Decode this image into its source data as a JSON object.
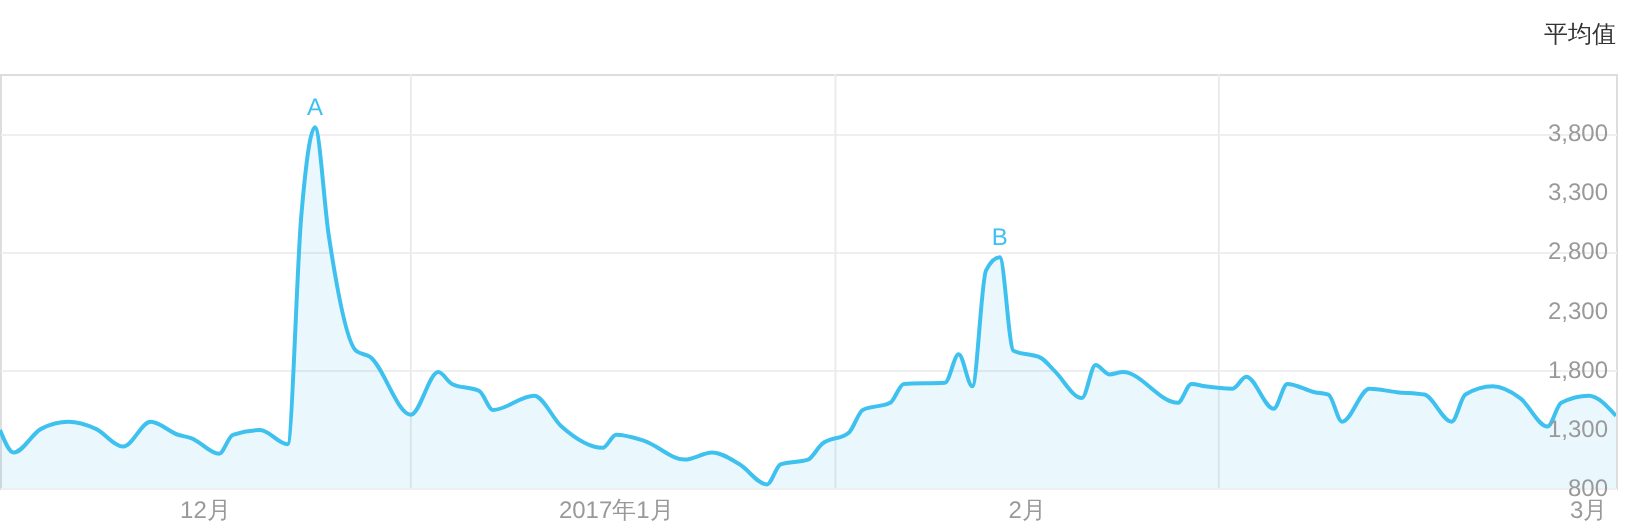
{
  "chart_data": {
    "type": "area",
    "annotations": [
      "平均值",
      {
        "text": "A",
        "x": "2016-12-25",
        "y": 3850
      },
      {
        "text": "B",
        "x": "2017-02-13",
        "y": 2750
      }
    ],
    "x": [
      "2016-12-02",
      "2016-12-03",
      "2016-12-05",
      "2016-12-07",
      "2016-12-09",
      "2016-12-11",
      "2016-12-13",
      "2016-12-15",
      "2016-12-16",
      "2016-12-18",
      "2016-12-19",
      "2016-12-21",
      "2016-12-23",
      "2016-12-24",
      "2016-12-25",
      "2016-12-26",
      "2016-12-28",
      "2016-12-29",
      "2017-01-01",
      "2017-01-03",
      "2017-01-04",
      "2017-01-06",
      "2017-01-07",
      "2017-01-10",
      "2017-01-12",
      "2017-01-15",
      "2017-01-16",
      "2017-01-18",
      "2017-01-21",
      "2017-01-23",
      "2017-01-25",
      "2017-01-27",
      "2017-01-28",
      "2017-01-30",
      "2017-01-31",
      "2017-02-02",
      "2017-02-03",
      "2017-02-05",
      "2017-02-06",
      "2017-02-09",
      "2017-02-10",
      "2017-02-11",
      "2017-02-12",
      "2017-02-13",
      "2017-02-14",
      "2017-02-16",
      "2017-02-17",
      "2017-02-19",
      "2017-02-20",
      "2017-02-21",
      "2017-02-22",
      "2017-02-26",
      "2017-02-27",
      "2017-02-28",
      "2017-03-02",
      "2017-03-03",
      "2017-03-05",
      "2017-03-06",
      "2017-03-08",
      "2017-03-09",
      "2017-03-10",
      "2017-03-12",
      "2017-03-14",
      "2017-03-16",
      "2017-03-18",
      "2017-03-19",
      "2017-03-21",
      "2017-03-23",
      "2017-03-25",
      "2017-03-26",
      "2017-03-28",
      "2017-03-30"
    ],
    "series": [
      {
        "color": "#3fc1f0",
        "values": [
          1290,
          1100,
          1300,
          1360,
          1300,
          1150,
          1360,
          1250,
          1220,
          1090,
          1250,
          1290,
          1170,
          3100,
          3850,
          2940,
          1960,
          1910,
          1420,
          1780,
          1680,
          1620,
          1460,
          1580,
          1320,
          1140,
          1250,
          1200,
          1040,
          1100,
          1000,
          830,
          1000,
          1040,
          1170,
          1270,
          1460,
          1520,
          1680,
          1690,
          1930,
          1660,
          2640,
          2750,
          1960,
          1900,
          1790,
          1560,
          1840,
          1760,
          1780,
          1520,
          1680,
          1660,
          1640,
          1740,
          1470,
          1680,
          1610,
          1590,
          1360,
          1640,
          1610,
          1590,
          1360,
          1590,
          1660,
          1560,
          1320,
          1520,
          1580,
          1410
        ]
      }
    ],
    "xlim": [
      "2016-12-02",
      "2017-03-30"
    ],
    "xticks": [
      {
        "value": "2016-12-17",
        "label": "12月"
      },
      {
        "value": "2017-01-16",
        "label": "2017年1月"
      },
      {
        "value": "2017-02-15",
        "label": "2月"
      },
      {
        "value": "2017-03-28",
        "label": "3月"
      }
    ],
    "ylim": [
      800,
      4300
    ],
    "yticks": [
      800,
      {
        "value": 1300,
        "label": "1,300"
      },
      {
        "value": 1800,
        "label": "1,800"
      },
      {
        "value": 2300,
        "label": "2,300"
      },
      {
        "value": 2800,
        "label": "2,800"
      },
      {
        "value": 3300,
        "label": "3,300"
      },
      {
        "value": 3800,
        "label": "3,800"
      },
      {
        "value": 4300,
        "label": null
      }
    ],
    "ref_lines": [
      {
        "axis": "x",
        "value": "2017-01-01",
        "label": null,
        "color": "#ebebeb"
      },
      {
        "axis": "x",
        "value": "2017-02-01",
        "label": null,
        "color": "#ebebeb"
      },
      {
        "axis": "x",
        "value": "2017-03-01",
        "label": null,
        "color": "#ebebeb"
      }
    ],
    "grid": "y",
    "legend": false
  }
}
